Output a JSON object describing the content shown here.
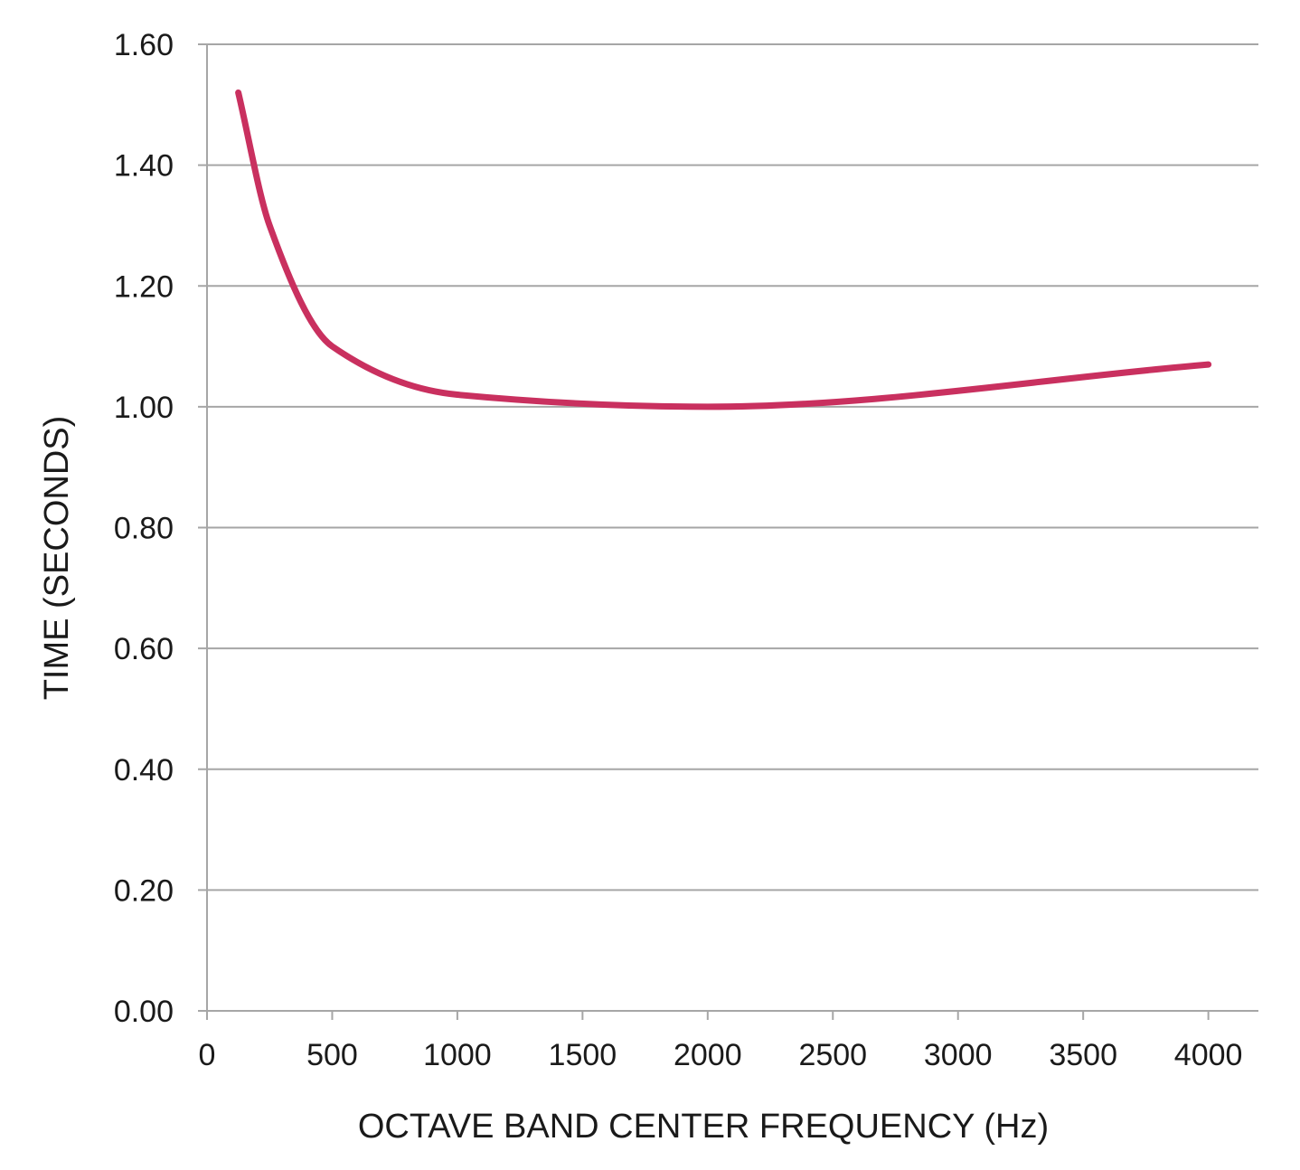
{
  "chart_data": {
    "type": "line",
    "title": "",
    "xlabel": "OCTAVE BAND CENTER FREQUENCY (Hz)",
    "ylabel": "TIME (SECONDS)",
    "xlim": [
      0,
      4200
    ],
    "ylim": [
      0,
      1.6
    ],
    "x_ticks": [
      0,
      500,
      1000,
      1500,
      2000,
      2500,
      3000,
      3500,
      4000
    ],
    "x_tick_labels": [
      "0",
      "500",
      "1000",
      "1500",
      "2000",
      "2500",
      "3000",
      "3500",
      "4000"
    ],
    "y_ticks": [
      0,
      0.2,
      0.4,
      0.6,
      0.8,
      1.0,
      1.2,
      1.4,
      1.6
    ],
    "y_tick_labels": [
      "0.00",
      "0.20",
      "0.40",
      "0.60",
      "0.80",
      "1.00",
      "1.20",
      "1.40",
      "1.60"
    ],
    "grid": "horizontal",
    "legend": "none",
    "series": [
      {
        "color": "#c9305f",
        "smooth": true,
        "x": [
          125,
          250,
          500,
          1000,
          2000,
          4000
        ],
        "y": [
          1.52,
          1.3,
          1.1,
          1.02,
          1.0,
          1.07
        ]
      }
    ]
  }
}
